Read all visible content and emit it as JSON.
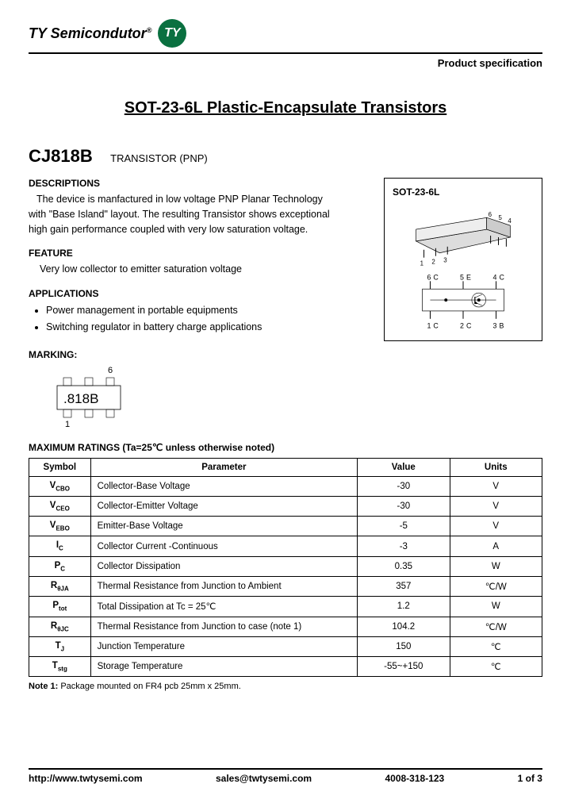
{
  "header": {
    "company": "TY Semicondutor",
    "logo_text": "TY",
    "logo_bg": "#0a7040",
    "spec_label": "Product specification"
  },
  "title": "SOT-23-6L Plastic-Encapsulate Transistors",
  "part": {
    "number": "CJ818B",
    "subtype": "TRANSISTOR (PNP)"
  },
  "descriptions": {
    "heading": "DESCRIPTIONS",
    "text": "The device is manfactured in low voltage PNP Planar Technology with \"Base Island\" layout. The resulting Transistor shows exceptional high gain performance coupled with very low saturation voltage."
  },
  "feature": {
    "heading": "FEATURE",
    "text": "Very low collector to emitter saturation voltage"
  },
  "applications": {
    "heading": "APPLICATIONS",
    "items": [
      "Power management in portable equipments",
      "Switching regulator in battery charge applications"
    ]
  },
  "package": {
    "label": "SOT-23-6L",
    "pins": [
      {
        "n": "1",
        "l": "C"
      },
      {
        "n": "2",
        "l": "C"
      },
      {
        "n": "3",
        "l": "B"
      },
      {
        "n": "4",
        "l": "C"
      },
      {
        "n": "5",
        "l": "E"
      },
      {
        "n": "6",
        "l": "C"
      }
    ]
  },
  "marking": {
    "heading": "MARKING:",
    "code": ".818B",
    "top_label": "6",
    "bottom_label": "1"
  },
  "ratings": {
    "heading": "MAXIMUM RATINGS (Ta=25℃ unless otherwise noted)",
    "columns": [
      "Symbol",
      "Parameter",
      "Value",
      "Units"
    ],
    "rows": [
      {
        "sym": "V",
        "sub": "CBO",
        "param": "Collector-Base Voltage",
        "val": "-30",
        "unit": "V"
      },
      {
        "sym": "V",
        "sub": "CEO",
        "param": "Collector-Emitter Voltage",
        "val": "-30",
        "unit": "V"
      },
      {
        "sym": "V",
        "sub": "EBO",
        "param": "Emitter-Base Voltage",
        "val": "-5",
        "unit": "V"
      },
      {
        "sym": "I",
        "sub": "C",
        "param": "Collector Current -Continuous",
        "val": "-3",
        "unit": "A"
      },
      {
        "sym": "P",
        "sub": "C",
        "param": "Collector Dissipation",
        "val": "0.35",
        "unit": "W"
      },
      {
        "sym": "R",
        "sub": "θJA",
        "param": "Thermal Resistance from Junction to Ambient",
        "val": "357",
        "unit": "℃/W"
      },
      {
        "sym": "P",
        "sub": "tot",
        "param": "Total Dissipation at Tc = 25℃",
        "val": "1.2",
        "unit": "W"
      },
      {
        "sym": "R",
        "sub": "θJC",
        "param": "Thermal Resistance from Junction to case (note 1)",
        "val": "104.2",
        "unit": "℃/W"
      },
      {
        "sym": "T",
        "sub": "J",
        "param": "Junction Temperature",
        "val": "150",
        "unit": "℃"
      },
      {
        "sym": "T",
        "sub": "stg",
        "param": "Storage Temperature",
        "val": "-55~+150",
        "unit": "℃"
      }
    ]
  },
  "note1": {
    "label": "Note 1:",
    "text": "Package mounted on FR4 pcb 25mm x 25mm."
  },
  "footer": {
    "url": "http://www.twtysemi.com",
    "email": "sales@twtysemi.com",
    "phone": "4008-318-123",
    "page": "1 of 3"
  }
}
